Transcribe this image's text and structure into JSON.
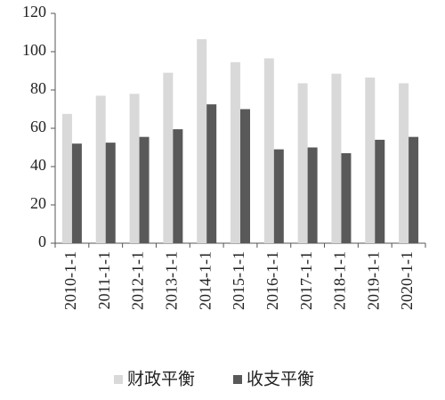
{
  "chart_data": {
    "type": "bar",
    "categories": [
      "2010-1-1",
      "2011-1-1",
      "2012-1-1",
      "2013-1-1",
      "2014-1-1",
      "2015-1-1",
      "2016-1-1",
      "2017-1-1",
      "2018-1-1",
      "2019-1-1",
      "2020-1-1"
    ],
    "series": [
      {
        "name": "财政平衡",
        "color": "#d9d9d9",
        "values": [
          67.5,
          77,
          78,
          89,
          106.5,
          94.5,
          96.5,
          83.5,
          88.5,
          86.5,
          83.5
        ]
      },
      {
        "name": "收支平衡",
        "color": "#595959",
        "values": [
          52,
          52.5,
          55.5,
          59.5,
          72.5,
          70,
          49,
          50,
          47,
          54,
          55.5
        ]
      }
    ],
    "ylim": [
      0,
      120
    ],
    "yticks": [
      0,
      20,
      40,
      60,
      80,
      100,
      120
    ],
    "grid": false
  }
}
